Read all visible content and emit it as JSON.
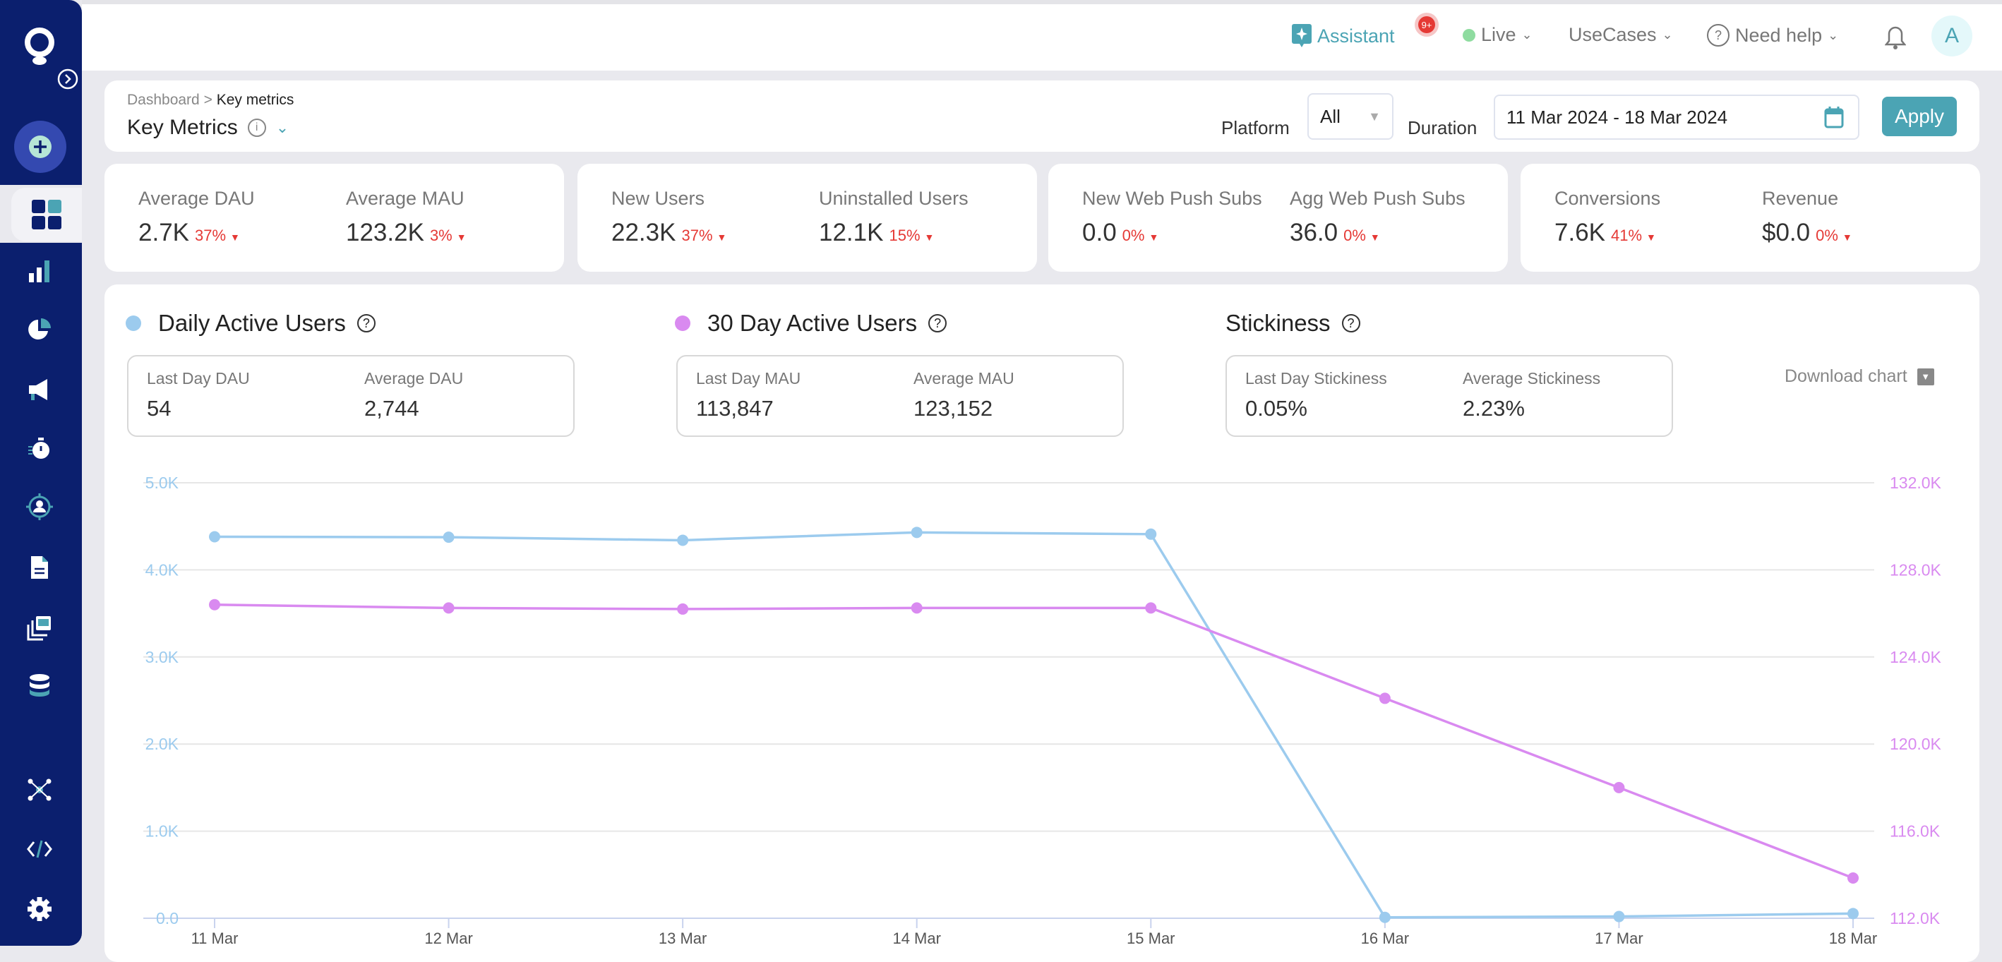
{
  "topbar": {
    "assistant": "Assistant",
    "assistant_badge": "9+",
    "live": "Live",
    "usecases": "UseCases",
    "help": "Need help",
    "avatar": "A"
  },
  "header": {
    "breadcrumb_root": "Dashboard",
    "breadcrumb_sep": ">",
    "breadcrumb_current": "Key metrics",
    "title": "Key Metrics",
    "platform_label": "Platform",
    "platform_value": "All",
    "duration_label": "Duration",
    "duration_value": "11 Mar 2024 - 18 Mar 2024",
    "apply": "Apply"
  },
  "metrics": [
    {
      "label": "Average DAU",
      "value": "2.7K",
      "change": "37%"
    },
    {
      "label": "Average MAU",
      "value": "123.2K",
      "change": "3%"
    },
    {
      "label": "New Users",
      "value": "22.3K",
      "change": "37%"
    },
    {
      "label": "Uninstalled Users",
      "value": "12.1K",
      "change": "15%"
    },
    {
      "label": "New Web Push Subs",
      "value": "0.0",
      "change": "0%"
    },
    {
      "label": "Agg Web Push Subs",
      "value": "36.0",
      "change": "0%"
    },
    {
      "label": "Conversions",
      "value": "7.6K",
      "change": "41%"
    },
    {
      "label": "Revenue",
      "value": "$0.0",
      "change": "0%"
    }
  ],
  "panels": [
    {
      "title": "Daily Active Users",
      "color": "#9ccbee",
      "l1": "Last Day DAU",
      "v1": "54",
      "l2": "Average DAU",
      "v2": "2,744"
    },
    {
      "title": "30 Day Active Users",
      "color": "#d98af0",
      "l1": "Last Day MAU",
      "v1": "113,847",
      "l2": "Average MAU",
      "v2": "123,152"
    },
    {
      "title": "Stickiness",
      "l1": "Last Day Stickiness",
      "v1": "0.05%",
      "l2": "Average Stickiness",
      "v2": "2.23%"
    }
  ],
  "download": "Download chart",
  "colors": {
    "sidebar": "#0b1f6e",
    "accent": "#4ba4b4",
    "negative": "#e53935"
  },
  "chart_data": {
    "type": "line",
    "categories": [
      "11 Mar",
      "12 Mar",
      "13 Mar",
      "14 Mar",
      "15 Mar",
      "16 Mar",
      "17 Mar",
      "18 Mar"
    ],
    "series": [
      {
        "name": "Daily Active Users",
        "axis": "left",
        "color": "#9ccbee",
        "values": [
          4380,
          4375,
          4340,
          4430,
          4410,
          10,
          20,
          54
        ]
      },
      {
        "name": "30 Day Active Users",
        "axis": "right",
        "color": "#d98af0",
        "values": [
          126400,
          126250,
          126200,
          126250,
          126250,
          122100,
          118000,
          113847
        ]
      }
    ],
    "y_left": {
      "range": [
        0,
        5000
      ],
      "ticks": [
        "0.0",
        "1.0K",
        "2.0K",
        "3.0K",
        "4.0K",
        "5.0K"
      ]
    },
    "y_right": {
      "range": [
        112000,
        132000
      ],
      "ticks": [
        "112.0K",
        "116.0K",
        "120.0K",
        "124.0K",
        "128.0K",
        "132.0K"
      ]
    },
    "grid": true,
    "legend": "top"
  }
}
